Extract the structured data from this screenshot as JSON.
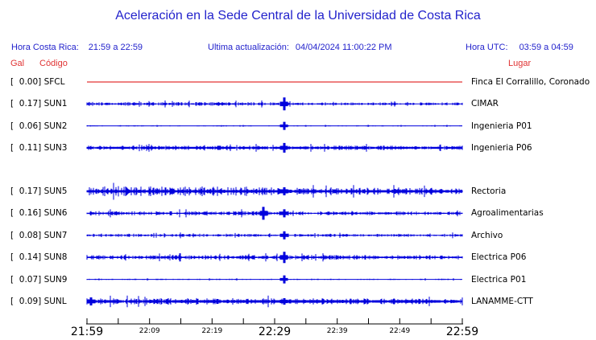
{
  "page": {
    "title": "Aceleración en la Sede Central de la Universidad de Costa Rica"
  },
  "header": {
    "hora_cr_label": "Hora Costa Rica:",
    "hora_cr_value": "21:59 a 22:59",
    "update_label": "Ultima actualización:",
    "update_value": "04/04/2024 11:00:22 PM",
    "hora_utc_label": "Hora UTC:",
    "hora_utc_value": "03:59 a 04:59"
  },
  "columns": {
    "gal_label": "Gal",
    "codigo_label": "Código",
    "lugar_label": "Lugar"
  },
  "colors": {
    "header_blue": "#2323cc",
    "header_red": "#e03333",
    "trace_blue": "#0000dd",
    "trace_red": "#dd0000",
    "axis_black": "#000000"
  },
  "chart_data": {
    "type": "line",
    "subtype": "seismogram-strips",
    "title": "Aceleración en la Sede Central de la Universidad de Costa Rica",
    "x_axis": {
      "start_label": "21:59",
      "end_label": "22:59",
      "duration_minutes": 60,
      "tick_interval_minutes": 5,
      "major_labels": [
        {
          "minute": 0,
          "label": "21:59"
        },
        {
          "minute": 30,
          "label": "22:29"
        },
        {
          "minute": 60,
          "label": "22:59"
        }
      ],
      "minor_labels": [
        {
          "minute": 10,
          "label": "22:09"
        },
        {
          "minute": 20,
          "label": "22:19"
        },
        {
          "minute": 40,
          "label": "22:39"
        },
        {
          "minute": 50,
          "label": "22:49"
        }
      ]
    },
    "event_time_minutes": 31.5,
    "gal_unit": "Gal",
    "series": [
      {
        "code": "SFCL",
        "gal": "0.00",
        "location": "Finca El Corralillo, Coronado",
        "color": "red",
        "amp": 0,
        "min_amp": 0,
        "left_bias": 1,
        "spikes": []
      },
      {
        "code": "SUN1",
        "gal": "0.17",
        "location": "CIMAR",
        "color": "blue",
        "amp": 1.1,
        "min_amp": 0,
        "left_bias": 1.3,
        "spikes": [
          {
            "m": 31.5,
            "a": 8
          }
        ]
      },
      {
        "code": "SUN2",
        "gal": "0.06",
        "location": "Ingenieria P01",
        "color": "blue",
        "amp": 0.45,
        "min_amp": 0,
        "left_bias": 1,
        "spikes": [
          {
            "m": 31.5,
            "a": 5
          }
        ]
      },
      {
        "code": "SUN3",
        "gal": "0.11",
        "location": "Ingenieria P06",
        "color": "blue",
        "amp": 1.6,
        "min_amp": 1.2,
        "left_bias": 1,
        "spikes": [
          {
            "m": 31.5,
            "a": 6
          }
        ]
      },
      {
        "code": "SUN5",
        "gal": "0.17",
        "location": "Rectoria",
        "color": "blue",
        "amp": 2.6,
        "min_amp": 1.4,
        "left_bias": 1.35,
        "spikes": [
          {
            "m": 31.5,
            "a": 5
          }
        ]
      },
      {
        "code": "SUN6",
        "gal": "0.16",
        "location": "Agroalimentarias",
        "color": "blue",
        "amp": 1.4,
        "min_amp": 0.6,
        "left_bias": 1.2,
        "spikes": [
          {
            "m": 28.2,
            "a": 8
          },
          {
            "m": 31.5,
            "a": 5
          }
        ]
      },
      {
        "code": "SUN7",
        "gal": "0.08",
        "location": "Archivo",
        "color": "blue",
        "amp": 1.2,
        "min_amp": 0.5,
        "left_bias": 1,
        "spikes": [
          {
            "m": 31.5,
            "a": 5
          }
        ]
      },
      {
        "code": "SUN8",
        "gal": "0.14",
        "location": "Electrica P06",
        "color": "blue",
        "amp": 1.7,
        "min_amp": 0.8,
        "left_bias": 1,
        "spikes": [
          {
            "m": 31.5,
            "a": 7
          }
        ]
      },
      {
        "code": "SUN9",
        "gal": "0.07",
        "location": "Electrica P01",
        "color": "blue",
        "amp": 0.5,
        "min_amp": 0,
        "left_bias": 1,
        "spikes": [
          {
            "m": 31.5,
            "a": 5
          }
        ]
      },
      {
        "code": "SUNL",
        "gal": "0.09",
        "location": "LANAMME-CTT",
        "color": "blue",
        "amp": 2.2,
        "min_amp": 1.5,
        "left_bias": 1.1,
        "spikes": [
          {
            "m": 0.7,
            "a": 5
          },
          {
            "m": 31.5,
            "a": 4
          }
        ]
      }
    ]
  }
}
